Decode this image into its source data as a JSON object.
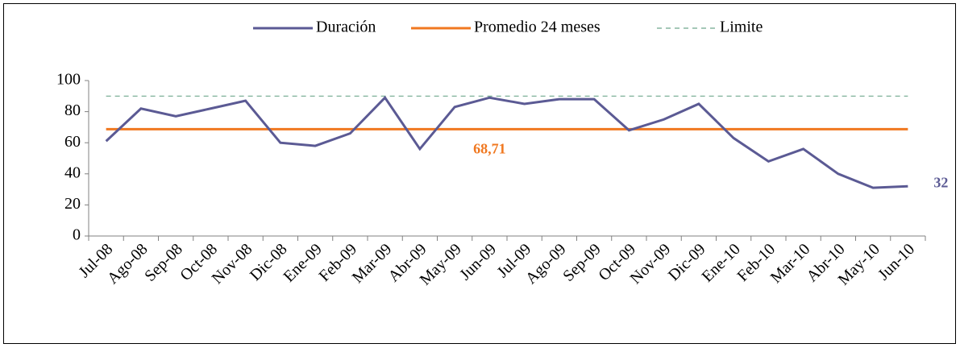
{
  "chart_data": {
    "type": "line",
    "categories": [
      "Jul-08",
      "Ago-08",
      "Sep-08",
      "Oct-08",
      "Nov-08",
      "Dic-08",
      "Ene-09",
      "Feb-09",
      "Mar-09",
      "Abr-09",
      "May-09",
      "Jun-09",
      "Jul-09",
      "Ago-09",
      "Sep-09",
      "Oct-09",
      "Nov-09",
      "Dic-09",
      "Ene-10",
      "Feb-10",
      "Mar-10",
      "Abr-10",
      "May-10",
      "Jun-10"
    ],
    "series": [
      {
        "name": "Duración",
        "color": "#5b5a94",
        "dash": false,
        "values": [
          61,
          82,
          77,
          82,
          87,
          60,
          58,
          66,
          89,
          56,
          83,
          89,
          85,
          88,
          88,
          68,
          75,
          85,
          63,
          48,
          56,
          40,
          31,
          32
        ],
        "value_labels": [
          null,
          null,
          null,
          null,
          null,
          null,
          null,
          null,
          null,
          null,
          null,
          null,
          null,
          null,
          null,
          null,
          null,
          null,
          null,
          null,
          null,
          null,
          null,
          "32"
        ]
      },
      {
        "name": "Promedio 24 meses",
        "color": "#f07820",
        "dash": false,
        "values": [
          68.71,
          68.71,
          68.71,
          68.71,
          68.71,
          68.71,
          68.71,
          68.71,
          68.71,
          68.71,
          68.71,
          68.71,
          68.71,
          68.71,
          68.71,
          68.71,
          68.71,
          68.71,
          68.71,
          68.71,
          68.71,
          68.71,
          68.71,
          68.71
        ],
        "value_labels": [
          null,
          null,
          null,
          null,
          null,
          null,
          null,
          null,
          null,
          null,
          null,
          "68,71",
          null,
          null,
          null,
          null,
          null,
          null,
          null,
          null,
          null,
          null,
          null,
          null
        ]
      },
      {
        "name": "Limite",
        "color": "#6fa88c",
        "dash": true,
        "values": [
          90,
          90,
          90,
          90,
          90,
          90,
          90,
          90,
          90,
          90,
          90,
          90,
          90,
          90,
          90,
          90,
          90,
          90,
          90,
          90,
          90,
          90,
          90,
          90
        ]
      }
    ],
    "ylim": [
      0,
      100
    ],
    "yticks": [
      0,
      20,
      40,
      60,
      80,
      100
    ],
    "grid": false,
    "legend": "top"
  }
}
